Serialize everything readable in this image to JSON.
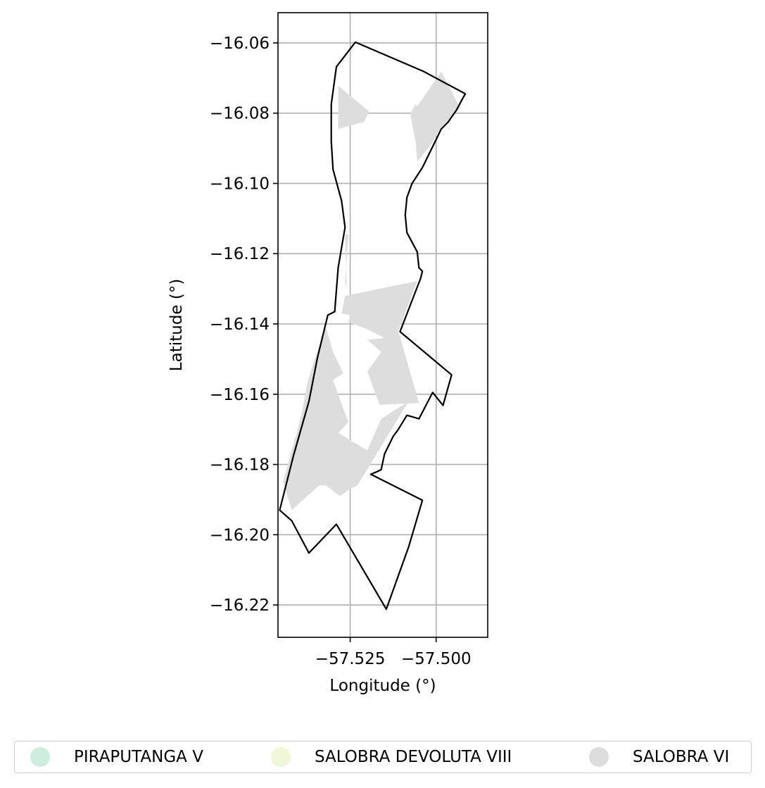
{
  "chart_data": {
    "type": "map",
    "xlabel": "Longitude (°)",
    "ylabel": "Latitude (°)",
    "xlim": [
      -57.546,
      -57.485
    ],
    "ylim": [
      -16.2292,
      -16.0514
    ],
    "xticks": [
      -57.525,
      -57.5
    ],
    "xtick_labels": [
      "−57.525",
      "−57.500"
    ],
    "yticks": [
      -16.06,
      -16.08,
      -16.1,
      -16.12,
      -16.14,
      -16.16,
      -16.18,
      -16.2,
      -16.22
    ],
    "ytick_labels": [
      "−16.06",
      "−16.08",
      "−16.10",
      "−16.12",
      "−16.14",
      "−16.16",
      "−16.18",
      "−16.20",
      "−16.22"
    ],
    "grid": true,
    "legend_position": "bottom-center",
    "legend": [
      {
        "label": "PIRAPUTANGA V",
        "color": "#cdeedd"
      },
      {
        "label": "SALOBRA DEVOLUTA VIII",
        "color": "#eef7d6"
      },
      {
        "label": "SALOBRA VI",
        "color": "#dddddd"
      }
    ],
    "boundary": [
      [
        -57.5235,
        -16.0598
      ],
      [
        -57.5035,
        -16.0682
      ],
      [
        -57.4915,
        -16.0745
      ],
      [
        -57.4925,
        -16.0762
      ],
      [
        -57.494,
        -16.079
      ],
      [
        -57.4965,
        -16.0825
      ],
      [
        -57.4985,
        -16.0845
      ],
      [
        -57.501,
        -16.0895
      ],
      [
        -57.504,
        -16.0955
      ],
      [
        -57.507,
        -16.1
      ],
      [
        -57.5085,
        -16.104
      ],
      [
        -57.509,
        -16.109
      ],
      [
        -57.5085,
        -16.114
      ],
      [
        -57.5055,
        -16.1195
      ],
      [
        -57.505,
        -16.124
      ],
      [
        -57.504,
        -16.125
      ],
      [
        -57.5045,
        -16.127
      ],
      [
        -57.5105,
        -16.1422
      ],
      [
        -57.4955,
        -16.1545
      ],
      [
        -57.498,
        -16.1632
      ],
      [
        -57.501,
        -16.1595
      ],
      [
        -57.505,
        -16.167
      ],
      [
        -57.5085,
        -16.166
      ],
      [
        -57.511,
        -16.17
      ],
      [
        -57.5125,
        -16.172
      ],
      [
        -57.515,
        -16.177
      ],
      [
        -57.516,
        -16.1815
      ],
      [
        -57.5175,
        -16.1822
      ],
      [
        -57.519,
        -16.1828
      ],
      [
        -57.504,
        -16.1902
      ],
      [
        -57.508,
        -16.2035
      ],
      [
        -57.5145,
        -16.2212
      ],
      [
        -57.529,
        -16.197
      ],
      [
        -57.537,
        -16.2052
      ],
      [
        -57.542,
        -16.196
      ],
      [
        -57.5455,
        -16.193
      ],
      [
        -57.5415,
        -16.1775
      ],
      [
        -57.537,
        -16.162
      ],
      [
        -57.5345,
        -16.1495
      ],
      [
        -57.5315,
        -16.1375
      ],
      [
        -57.5295,
        -16.1365
      ],
      [
        -57.5285,
        -16.124
      ],
      [
        -57.5265,
        -16.1125
      ],
      [
        -57.5275,
        -16.105
      ],
      [
        -57.53,
        -16.096
      ],
      [
        -57.5305,
        -16.088
      ],
      [
        -57.5305,
        -16.0775
      ],
      [
        -57.529,
        -16.0668
      ]
    ],
    "salobra_vi_patches": [
      [
        [
          -57.5285,
          -16.0722
        ],
        [
          -57.5195,
          -16.0795
        ],
        [
          -57.521,
          -16.0825
        ],
        [
          -57.5285,
          -16.0845
        ]
      ],
      [
        [
          -57.4985,
          -16.0682
        ],
        [
          -57.493,
          -16.0785
        ],
        [
          -57.4985,
          -16.084
        ],
        [
          -57.5015,
          -16.089
        ],
        [
          -57.5055,
          -16.0938
        ],
        [
          -57.506,
          -16.088
        ],
        [
          -57.507,
          -16.083
        ],
        [
          -57.5075,
          -16.08
        ],
        [
          -57.506,
          -16.0775
        ],
        [
          -57.5055,
          -16.078
        ]
      ],
      [
        [
          -57.5265,
          -16.1145
        ],
        [
          -57.5255,
          -16.1145
        ],
        [
          -57.5265,
          -16.128
        ],
        [
          -57.526,
          -16.13
        ]
      ],
      [
        [
          -57.5265,
          -16.132
        ],
        [
          -57.5055,
          -16.1278
        ],
        [
          -57.511,
          -16.142
        ],
        [
          -57.505,
          -16.1625
        ],
        [
          -57.5165,
          -16.163
        ],
        [
          -57.52,
          -16.1535
        ],
        [
          -57.516,
          -16.148
        ],
        [
          -57.52,
          -16.1445
        ],
        [
          -57.515,
          -16.144
        ],
        [
          -57.52,
          -16.1415
        ],
        [
          -57.5255,
          -16.1395
        ],
        [
          -57.525,
          -16.1375
        ],
        [
          -57.5275,
          -16.137
        ]
      ],
      [
        [
          -57.508,
          -16.162
        ],
        [
          -57.516,
          -16.167
        ],
        [
          -57.52,
          -16.176
        ],
        [
          -57.526,
          -16.1725
        ],
        [
          -57.5285,
          -16.171
        ],
        [
          -57.5255,
          -16.168
        ],
        [
          -57.527,
          -16.164
        ],
        [
          -57.53,
          -16.156
        ],
        [
          -57.527,
          -16.154
        ],
        [
          -57.53,
          -16.148
        ],
        [
          -57.532,
          -16.141
        ],
        [
          -57.5335,
          -16.145
        ],
        [
          -57.536,
          -16.152
        ],
        [
          -57.5375,
          -16.157
        ],
        [
          -57.539,
          -16.165
        ],
        [
          -57.5405,
          -16.171
        ],
        [
          -57.542,
          -16.176
        ],
        [
          -57.5445,
          -16.185
        ],
        [
          -57.542,
          -16.193
        ],
        [
          -57.5375,
          -16.189
        ],
        [
          -57.534,
          -16.186
        ],
        [
          -57.532,
          -16.186
        ],
        [
          -57.528,
          -16.189
        ],
        [
          -57.525,
          -16.187
        ],
        [
          -57.523,
          -16.186
        ],
        [
          -57.521,
          -16.183
        ]
      ]
    ]
  }
}
